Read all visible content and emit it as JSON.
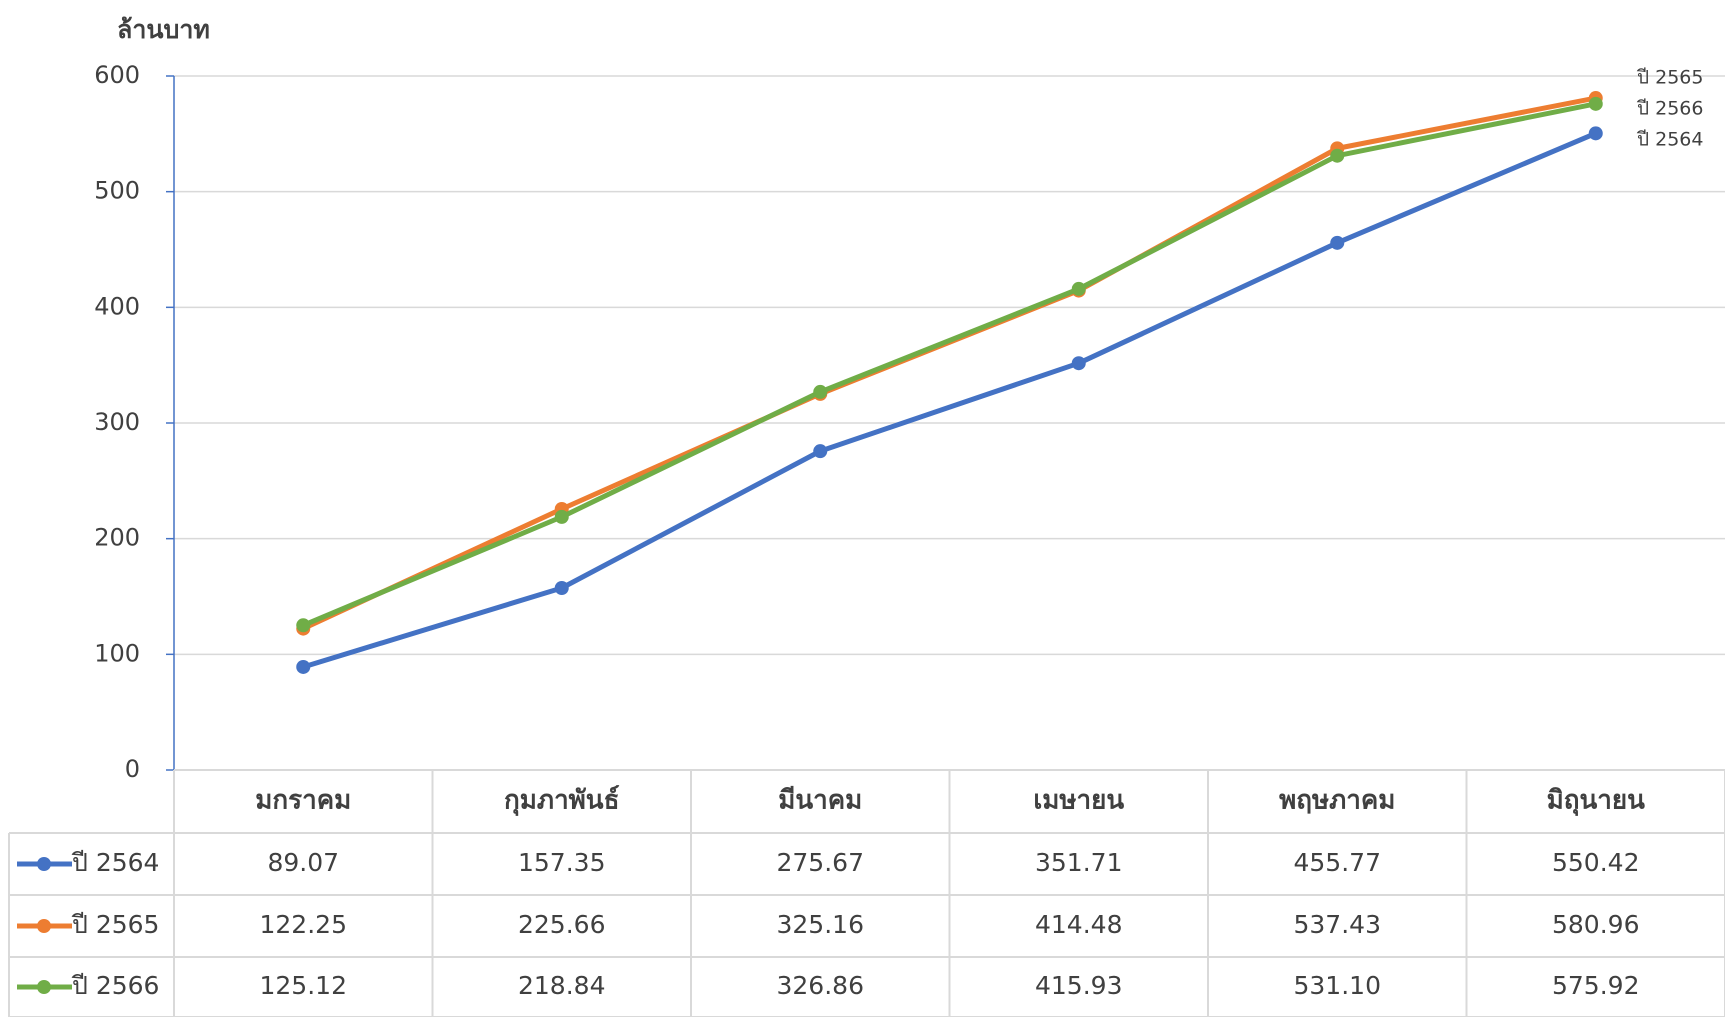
{
  "chart_data": {
    "type": "line",
    "y_label": "ล้านบาท",
    "categories": [
      "มกราคม",
      "กุมภาพันธ์",
      "มีนาคม",
      "เมษายน",
      "พฤษภาคม",
      "มิถุนายน"
    ],
    "series": [
      {
        "name": "ปี 2564",
        "color": "#4472c4",
        "values": [
          89.07,
          157.35,
          275.67,
          351.71,
          455.77,
          550.42
        ],
        "value_labels": [
          "89.07",
          "157.35",
          "275.67",
          "351.71",
          "455.77",
          "550.42"
        ]
      },
      {
        "name": "ปี 2565",
        "color": "#ed7d31",
        "values": [
          122.25,
          225.66,
          325.16,
          414.48,
          537.43,
          580.96
        ],
        "value_labels": [
          "122.25",
          "225.66",
          "325.16",
          "414.48",
          "537.43",
          "580.96"
        ]
      },
      {
        "name": "ปี 2566",
        "color": "#70ad47",
        "values": [
          125.12,
          218.84,
          326.86,
          415.93,
          531.1,
          575.92
        ],
        "value_labels": [
          "125.12",
          "218.84",
          "326.86",
          "415.93",
          "531.10",
          "575.92"
        ]
      }
    ],
    "ylim": [
      0,
      600
    ],
    "yticks": [
      0,
      100,
      200,
      300,
      400,
      500,
      600
    ],
    "grid": true
  }
}
